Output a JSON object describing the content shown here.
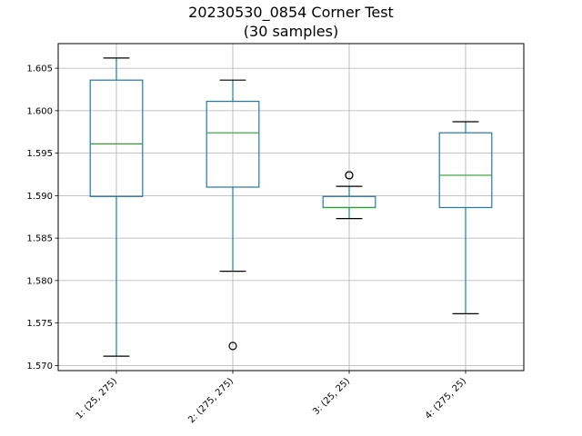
{
  "chart_data": {
    "type": "box",
    "title": "20230530_0854 Corner Test",
    "subtitle": "(30 samples)",
    "xlabel": "",
    "ylabel": "",
    "ylim": [
      1.5694,
      1.6079
    ],
    "yticks": [
      "1.570",
      "1.575",
      "1.580",
      "1.585",
      "1.590",
      "1.595",
      "1.600",
      "1.605"
    ],
    "grid": true,
    "colors": {
      "box": "#1f77b4",
      "median": "#2ca02c",
      "whisker_cap": "#000000",
      "grid": "#b0b0b0",
      "outlier": "#000000"
    },
    "categories": [
      "1: (25, 275)",
      "2: (275, 275)",
      "3: (25, 25)",
      "4: (275, 25)"
    ],
    "boxes": [
      {
        "whisker_low": 1.5711,
        "q1": 1.5899,
        "median": 1.5961,
        "q3": 1.6036,
        "whisker_high": 1.6062,
        "outliers": []
      },
      {
        "whisker_low": 1.5811,
        "q1": 1.591,
        "median": 1.5974,
        "q3": 1.6011,
        "whisker_high": 1.6036,
        "outliers": [
          1.5723
        ]
      },
      {
        "whisker_low": 1.5873,
        "q1": 1.5886,
        "median": 1.5886,
        "q3": 1.5899,
        "whisker_high": 1.5911,
        "outliers": [
          1.5924,
          1.5924
        ]
      },
      {
        "whisker_low": 1.5761,
        "q1": 1.5886,
        "median": 1.5924,
        "q3": 1.5974,
        "whisker_high": 1.5987,
        "outliers": []
      }
    ]
  }
}
